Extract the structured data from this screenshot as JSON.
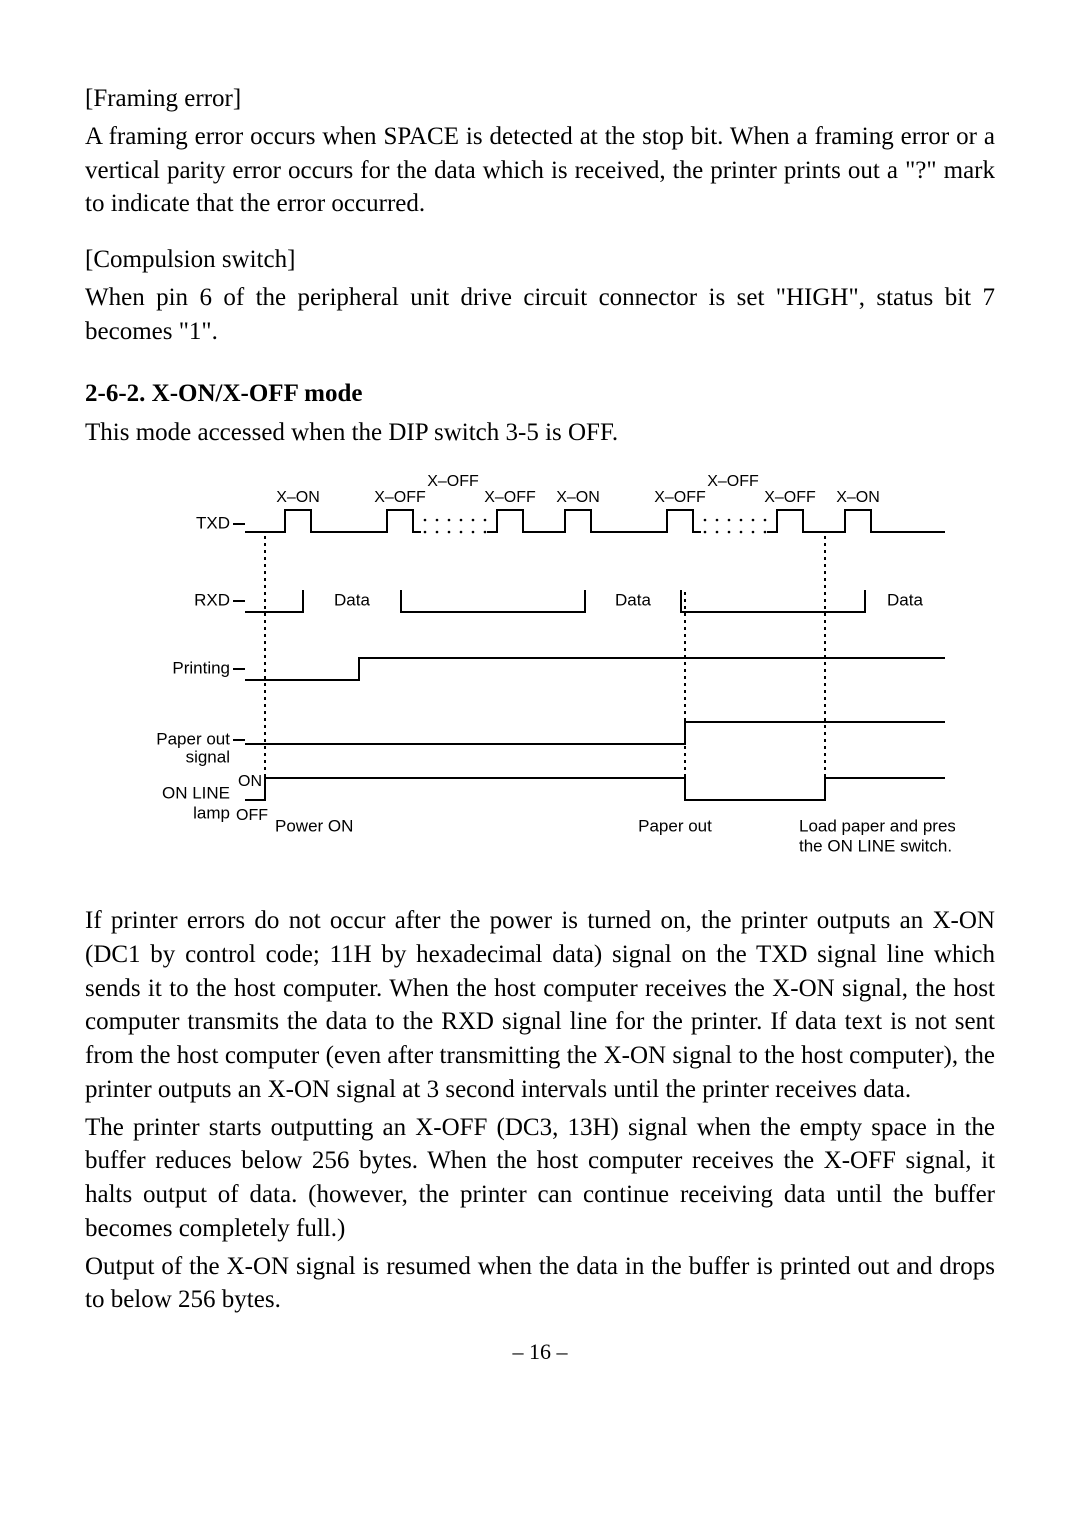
{
  "sections": {
    "framing": {
      "heading": "[Framing error]",
      "body": "A framing error occurs when SPACE is detected at the stop bit. When a framing error or a vertical parity error occurs for the data which is received, the printer prints out a \"?\" mark to indicate that the error occurred."
    },
    "compulsion": {
      "heading": "[Compulsion switch]",
      "body": "When pin 6 of the peripheral unit drive circuit connector is set \"HIGH\", status bit 7 becomes \"1\"."
    },
    "xonoff": {
      "title": "2-6-2. X-ON/X-OFF mode",
      "intro": "This mode accessed when the DIP switch 3-5 is OFF.",
      "para1": "If printer errors do not occur after the power is turned on, the printer outputs an X-ON (DC1 by control code; 11H by hexadecimal data) signal on the TXD signal line which sends it to the host computer. When the host computer receives the X-ON signal, the host computer transmits the data to the RXD signal line for the printer. If data text is not sent from the host computer (even after transmitting the X-ON signal to the host computer), the printer outputs an X-ON signal at 3 second intervals until the printer receives data.",
      "para2": "The printer starts outputting an X-OFF (DC3, 13H) signal when the empty space in the buffer reduces below 256 bytes. When the host computer receives the X-OFF signal, it halts output of data. (however, the printer can continue receiving data until the buffer becomes completely full.)",
      "para3": "Output of the X-ON signal is resumed when the data in the buffer is printed out and drops to below 256 bytes."
    }
  },
  "page_number": "– 16 –",
  "timing_diagram": {
    "rows": {
      "txd": "TXD",
      "rxd": "RXD",
      "printing": "Printing",
      "paper_out_signal_l1": "Paper out",
      "paper_out_signal_l2": "signal",
      "online_lamp_l1": "ON LINE",
      "online_lamp_l2": "lamp",
      "on": "ON",
      "off": "OFF"
    },
    "top_labels": {
      "xon": "X–ON",
      "xoff": "X–OFF",
      "xoff_top": "X–OFF"
    },
    "data_label": "Data",
    "bottom_labels": {
      "power_on": "Power ON",
      "paper_out": "Paper out",
      "load_paper_l1": "Load paper and press",
      "load_paper_l2": "the ON LINE switch."
    },
    "style": {
      "stroke_color": "#000000",
      "stroke_width": 2,
      "dash_pattern": "3,4",
      "font_family": "Arial, Helvetica, sans-serif",
      "label_fontsize": 16,
      "body_fontsize": 17,
      "background": "#ffffff",
      "dot_radius": 1.3
    }
  }
}
